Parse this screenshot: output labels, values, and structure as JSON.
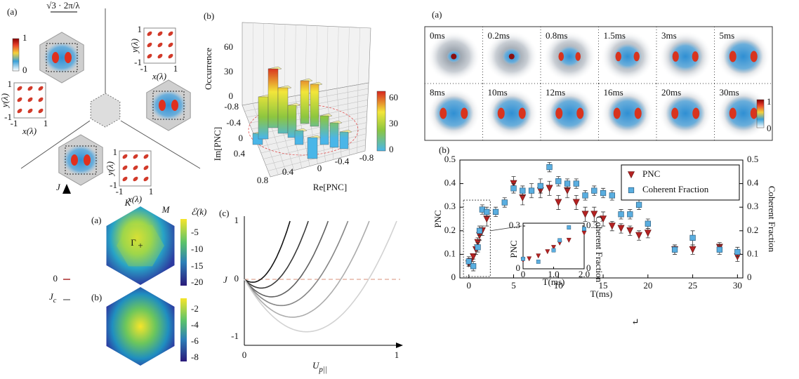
{
  "hex_panel": {
    "label": "(a)",
    "scale": "√3 · 2π/λ",
    "colorbar": [
      1,
      0
    ],
    "insets": [
      {
        "ylabel": "y(λ)",
        "xlabel": "x(λ)",
        "yticks": [
          1,
          -1
        ],
        "xticks": [
          -1,
          1
        ]
      },
      {
        "ylabel": "y(λ)",
        "xlabel": "x(λ)",
        "yticks": [
          1,
          -1
        ],
        "xticks": [
          -1,
          1
        ]
      },
      {
        "ylabel": "y(λ)",
        "xlabel": "x(λ)",
        "yticks": [
          1,
          -1
        ],
        "xticks": [
          -1,
          1
        ]
      }
    ]
  },
  "histogram_panel": {
    "label": "(b)",
    "zlabel": "Occurrence",
    "zticks": [
      60,
      30,
      0
    ],
    "ylabel": "Im[PNC]",
    "yticks": [
      -0.8,
      -0.4,
      0,
      0.4
    ],
    "xlabel": "Re[PNC]",
    "xticks": [
      0.8,
      0.4,
      0,
      -0.4,
      -0.8
    ],
    "colorbar": [
      60,
      30,
      0
    ]
  },
  "band_panel": {
    "axis": {
      "label": "J",
      "zero": 0,
      "jc": {
        "main": "J",
        "sub": "c"
      }
    },
    "a": {
      "label": "(a)",
      "k": "K",
      "m": "M",
      "gamma": "Γ",
      "cbar_title": "ℰ(k)",
      "cbar_ticks": [
        -5,
        -10,
        -15,
        -20
      ]
    },
    "b": {
      "label": "(b)",
      "cbar_ticks": [
        -2,
        -4,
        -6,
        -8
      ]
    },
    "c": {
      "label": "(c)",
      "yticks": [
        1,
        0,
        -1
      ],
      "xticks": [
        0,
        1
      ],
      "ylabel": "J",
      "xlabel": {
        "main": "U",
        "sub": "p||"
      }
    }
  },
  "images_panel": {
    "label": "(a)",
    "times": [
      "0ms",
      "0.2ms",
      "0.8ms",
      "1.5ms",
      "3ms",
      "5ms",
      "8ms",
      "10ms",
      "12ms",
      "16ms",
      "20ms",
      "30ms"
    ],
    "colorbar": [
      1,
      0
    ]
  },
  "return_symbol": "↵",
  "chart_data": {
    "type": "scatter",
    "panel_label": "(b)",
    "xlabel": "T(ms)",
    "ylabel": "PNC",
    "y2label": "Coherent Fraction",
    "xlim": [
      -1,
      30.6
    ],
    "xticks": [
      0,
      5,
      10,
      15,
      20,
      25,
      30
    ],
    "ylim": [
      0,
      0.5
    ],
    "yticks": [
      0,
      0.1,
      0.2,
      0.3,
      0.4,
      0.5
    ],
    "y2lim": [
      0,
      0.5
    ],
    "y2ticks": [
      0,
      0.1,
      0.2,
      0.3,
      0.4,
      0.5
    ],
    "legend": "upper right",
    "series": [
      {
        "name": "PNC",
        "color": "#b52222",
        "marker": "triangle-down",
        "x": [
          0,
          0.2,
          0.5,
          0.8,
          1,
          1.2,
          1.5,
          2,
          5,
          6,
          8,
          9,
          10,
          11,
          12,
          13,
          14,
          15,
          16,
          17,
          18,
          19,
          20,
          23,
          25,
          28,
          30
        ],
        "values": [
          0.06,
          0.07,
          0.09,
          0.12,
          0.15,
          0.18,
          0.2,
          0.25,
          0.4,
          0.34,
          0.37,
          0.38,
          0.32,
          0.37,
          0.32,
          0.27,
          0.27,
          0.25,
          0.22,
          0.21,
          0.2,
          0.18,
          0.19,
          0.12,
          0.12,
          0.13,
          0.09
        ],
        "errors": [
          0.01,
          0.01,
          0.01,
          0.02,
          0.02,
          0.02,
          0.02,
          0.03,
          0.03,
          0.03,
          0.03,
          0.03,
          0.03,
          0.03,
          0.03,
          0.03,
          0.03,
          0.03,
          0.02,
          0.02,
          0.02,
          0.02,
          0.02,
          0.02,
          0.02,
          0.02,
          0.02
        ]
      },
      {
        "name": "Coherent Fraction",
        "color": "#5aaee0",
        "marker": "square",
        "axis": "y2",
        "x": [
          0,
          0.5,
          1,
          1.2,
          1.5,
          2,
          3,
          4,
          5,
          6,
          7,
          8,
          9,
          10,
          11,
          12,
          13,
          14,
          15,
          16,
          17,
          18,
          19,
          20,
          23,
          25,
          28,
          30
        ],
        "values": [
          0.07,
          0.05,
          0.13,
          0.2,
          0.29,
          0.28,
          0.28,
          0.32,
          0.38,
          0.37,
          0.37,
          0.39,
          0.47,
          0.41,
          0.4,
          0.4,
          0.35,
          0.37,
          0.36,
          0.35,
          0.27,
          0.27,
          0.31,
          0.23,
          0.12,
          0.17,
          0.12,
          0.11
        ],
        "errors": [
          0.02,
          0.02,
          0.02,
          0.02,
          0.02,
          0.02,
          0.02,
          0.02,
          0.02,
          0.02,
          0.03,
          0.03,
          0.02,
          0.02,
          0.02,
          0.02,
          0.02,
          0.02,
          0.02,
          0.02,
          0.02,
          0.02,
          0.02,
          0.02,
          0.02,
          0.03,
          0.02,
          0.02
        ]
      }
    ],
    "inset": {
      "xlabel": "T(ms)",
      "ylabel": "PNC",
      "y2label": "Coherent Fraction",
      "xlim": [
        0,
        2
      ],
      "xticks": [
        0,
        {
          "value": 1,
          "label": "1.0"
        },
        {
          "value": 2,
          "label": "2.0"
        }
      ],
      "ylim": [
        0,
        0.3
      ],
      "yticks": [
        0,
        0.3
      ],
      "y2ticks": [
        0,
        0.3
      ]
    }
  }
}
